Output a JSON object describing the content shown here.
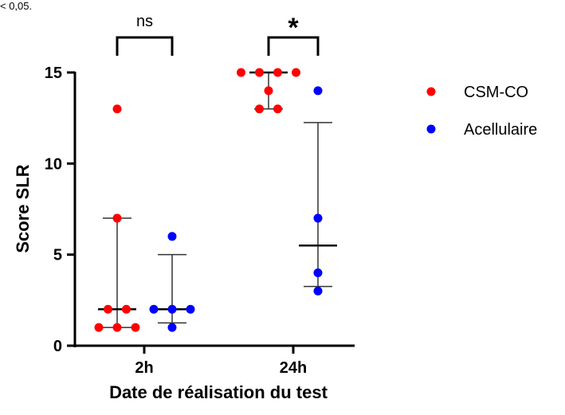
{
  "top_note": "< 0,05.",
  "chart_data": {
    "type": "scatter",
    "title": "",
    "xlabel": "Date de réalisation du test",
    "ylabel": "Score SLR",
    "ylim": [
      0,
      15
    ],
    "yticks": [
      "0",
      "5",
      "10",
      "15"
    ],
    "categories": [
      "2h",
      "24h"
    ],
    "series": [
      {
        "name": "CSM-CO",
        "color": "#ff0000",
        "groups": [
          {
            "category": "2h",
            "values": [
              13,
              7,
              2,
              2,
              1,
              1,
              1
            ],
            "median": 2,
            "error": [
              1,
              7
            ]
          },
          {
            "category": "24h",
            "values": [
              15,
              15,
              15,
              15,
              14,
              13,
              13
            ],
            "median": 15,
            "error": [
              13,
              15
            ]
          }
        ]
      },
      {
        "name": "Acellulaire",
        "color": "#0000ff",
        "groups": [
          {
            "category": "2h",
            "values": [
              6,
              2,
              2,
              2,
              1
            ],
            "median": 2,
            "error": [
              1.25,
              5
            ]
          },
          {
            "category": "24h",
            "values": [
              14,
              7,
              4,
              3
            ],
            "median": 5.5,
            "error": [
              3.25,
              12.25
            ]
          }
        ]
      }
    ],
    "significance": [
      {
        "category": "2h",
        "label": "ns"
      },
      {
        "category": "24h",
        "label": "*"
      }
    ],
    "legend": {
      "position": "right",
      "entries": [
        "CSM-CO",
        "Acellulaire"
      ]
    },
    "grid": false
  }
}
